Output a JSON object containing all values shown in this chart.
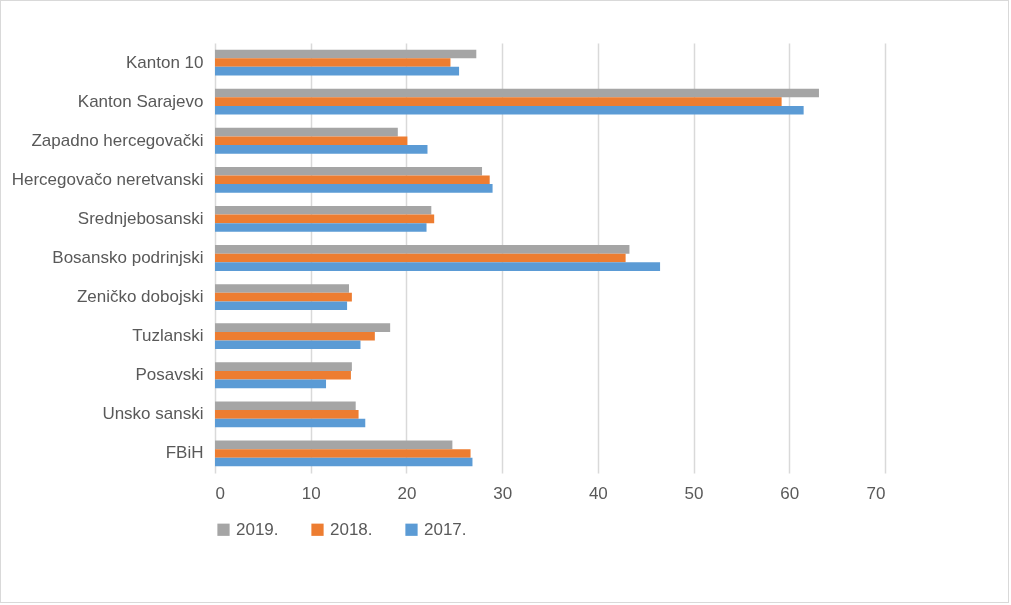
{
  "chart_data": {
    "type": "bar",
    "orientation": "horizontal",
    "categories": [
      "Kanton 10",
      "Kanton Sarajevo",
      "Zapadno hercegovački",
      "Hercegovačo neretvanski",
      "Srednjebosanski",
      "Bosansko podrinjski",
      "Zeničko dobojski",
      "Tuzlanski",
      "Posavski",
      "Unsko sanski",
      "FBiH"
    ],
    "series": [
      {
        "name": "2019.",
        "color": "#a5a5a5",
        "values": [
          27.3,
          63.1,
          19.1,
          27.9,
          22.6,
          43.3,
          14.0,
          18.3,
          14.3,
          14.7,
          24.8
        ]
      },
      {
        "name": "2018.",
        "color": "#ed7d31",
        "values": [
          24.6,
          59.2,
          20.1,
          28.7,
          22.9,
          42.9,
          14.3,
          16.7,
          14.2,
          15.0,
          26.7
        ]
      },
      {
        "name": "2017.",
        "color": "#5b9bd5",
        "values": [
          25.5,
          61.5,
          22.2,
          29.0,
          22.1,
          46.5,
          13.8,
          15.2,
          11.6,
          15.7,
          26.9
        ]
      }
    ],
    "xlim": [
      0,
      70
    ],
    "xticks": [
      0,
      10,
      20,
      30,
      40,
      50,
      60,
      70
    ],
    "grid": "x",
    "legend": "bottom"
  }
}
